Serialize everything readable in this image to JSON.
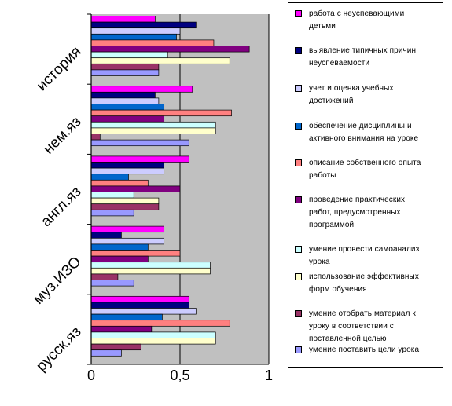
{
  "chart_data": {
    "type": "bar",
    "orientation": "horizontal",
    "categories": [
      "русск.яз",
      "муз.ИЗО",
      "англ.яз",
      "нем.яз",
      "история"
    ],
    "xlim": [
      0,
      1
    ],
    "x_ticks": [
      "0",
      "0,5",
      "1"
    ],
    "grid": "vertical gridlines at 0.5 and 1",
    "plot_background": "#c0c0c0",
    "legend_position": "right",
    "series": [
      {
        "name": "работа с неуспевающими детьми",
        "color": "#ff00ff",
        "values": [
          0.55,
          0.41,
          0.55,
          0.57,
          0.36
        ]
      },
      {
        "name": "выявление типичных причин неуспеваемости",
        "color": "#000080",
        "values": [
          0.55,
          0.17,
          0.41,
          0.36,
          0.59
        ]
      },
      {
        "name": "учет и оценка учебных достижений",
        "color": "#ccccff",
        "values": [
          0.59,
          0.41,
          0.41,
          0.38,
          0.5
        ]
      },
      {
        "name": "обеспечение дисциплины и активного внимания на уроке",
        "color": "#0066cc",
        "values": [
          0.4,
          0.32,
          0.21,
          0.41,
          0.48
        ]
      },
      {
        "name": "описание собственного опыта работы",
        "color": "#ff8080",
        "values": [
          0.78,
          0.5,
          0.32,
          0.79,
          0.69
        ]
      },
      {
        "name": "проведение практических работ, предусмотренных программой",
        "color": "#800080",
        "values": [
          0.34,
          0.32,
          0.5,
          0.41,
          0.89
        ]
      },
      {
        "name": "умение провести самоанализ урока",
        "color": "#ccffff",
        "values": [
          0.7,
          0.67,
          0.24,
          0.7,
          0.43
        ]
      },
      {
        "name": "использование эффективных форм обучения",
        "color": "#ffffcc",
        "values": [
          0.7,
          0.67,
          0.38,
          0.7,
          0.78
        ]
      },
      {
        "name": "умение отобрать материал к уроку в соответствии с поставленной целью",
        "color": "#993366",
        "values": [
          0.28,
          0.15,
          0.38,
          0.05,
          0.38
        ]
      },
      {
        "name": "умение поставить цели урока",
        "color": "#9999ff",
        "values": [
          0.17,
          0.24,
          0.24,
          0.55,
          0.38
        ]
      }
    ]
  },
  "legend": {
    "items": [
      [
        "работа с неуспевающими",
        "детьми"
      ],
      [
        "выявление типичных причин",
        "неуспеваемости"
      ],
      [
        "учет и оценка учебных",
        "достижений"
      ],
      [
        "обеспечение дисциплины и",
        "активного внимания на уроке"
      ],
      [
        "описание собственного опыта",
        "работы"
      ],
      [
        "проведение практических",
        "работ, предусмотренных",
        "программой"
      ],
      [
        "умение провести самоанализ",
        "урока"
      ],
      [
        "использование эффективных",
        "форм обучения"
      ],
      [
        "умение отобрать материал к",
        "уроку в соответствии с",
        "поставленной целью"
      ],
      [
        "умение поставить цели урока"
      ]
    ]
  }
}
